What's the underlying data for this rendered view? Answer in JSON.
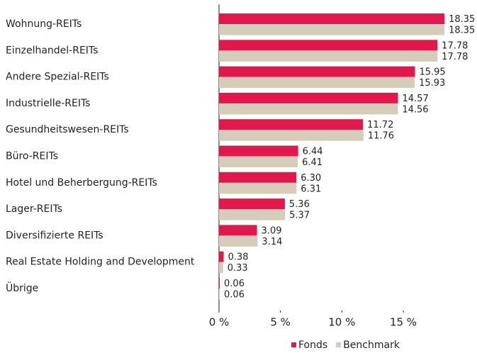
{
  "chart_data": {
    "type": "hbar",
    "categories": [
      "Wohnung-REITs",
      "Einzelhandel-REITs",
      "Andere Spezial-REITs",
      "Industrielle-REITs",
      "Gesundheitswesen-REITs",
      "Büro-REITs",
      "Hotel und Beherbergung-REITs",
      "Lager-REITs",
      "Diversifizierte REITs",
      "Real Estate Holding and Development",
      "Übrige"
    ],
    "series": [
      {
        "name": "Fonds",
        "color": "#e2174b",
        "values": [
          18.35,
          17.78,
          15.95,
          14.57,
          11.72,
          6.44,
          6.3,
          5.36,
          3.09,
          0.38,
          0.06
        ],
        "value_labels": [
          "18.35",
          "17.78",
          "15.95",
          "14.57",
          "11.72",
          "6.44",
          "6.30",
          "5.36",
          "3.09",
          "0.38",
          "0.06"
        ]
      },
      {
        "name": "Benchmark",
        "color": "#d5ccba",
        "values": [
          18.35,
          17.78,
          15.93,
          14.56,
          11.76,
          6.41,
          6.31,
          5.37,
          3.14,
          0.33,
          0.06
        ],
        "value_labels": [
          "18.35",
          "17.78",
          "15.93",
          "14.56",
          "11.76",
          "6.41",
          "6.31",
          "5.37",
          "3.14",
          "0.33",
          "0.06"
        ]
      }
    ],
    "xlim": [
      0,
      21
    ],
    "xticks": [
      {
        "value": 0,
        "label": "0 %"
      },
      {
        "value": 5,
        "label": "5 %"
      },
      {
        "value": 10,
        "label": "10 %"
      },
      {
        "value": 15,
        "label": "15 %"
      }
    ],
    "legend": "bottom-right"
  }
}
